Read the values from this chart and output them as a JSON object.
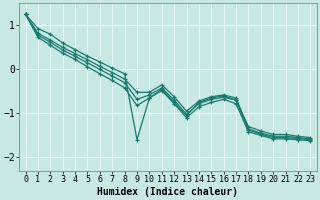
{
  "xlabel": "Humidex (Indice chaleur)",
  "xlim": [
    -0.5,
    23.5
  ],
  "ylim": [
    -2.3,
    1.5
  ],
  "yticks": [
    -2,
    -1,
    0,
    1
  ],
  "xticks": [
    0,
    1,
    2,
    3,
    4,
    5,
    6,
    7,
    8,
    9,
    10,
    11,
    12,
    13,
    14,
    15,
    16,
    17,
    18,
    19,
    20,
    21,
    22,
    23
  ],
  "background_color": "#c8e8e4",
  "grid_color": "#e8f8f8",
  "line_color": "#1a7a6e",
  "lines": [
    [
      1.25,
      0.93,
      0.8,
      0.6,
      0.45,
      0.3,
      0.17,
      0.03,
      -0.1,
      -1.6,
      -0.65,
      -0.45,
      -0.75,
      -1.05,
      -0.75,
      -0.65,
      -0.6,
      -0.7,
      -1.3,
      -1.4,
      -1.48,
      -1.48,
      -1.52,
      -1.55
    ],
    [
      1.25,
      0.82,
      0.67,
      0.5,
      0.36,
      0.22,
      0.07,
      -0.07,
      -0.22,
      -0.52,
      -0.52,
      -0.35,
      -0.62,
      -0.95,
      -0.72,
      -0.62,
      -0.58,
      -0.65,
      -1.35,
      -1.45,
      -1.52,
      -1.52,
      -1.55,
      -1.58
    ],
    [
      1.25,
      0.78,
      0.62,
      0.44,
      0.3,
      0.15,
      0.0,
      -0.15,
      -0.3,
      -0.68,
      -0.58,
      -0.42,
      -0.7,
      -1.02,
      -0.78,
      -0.68,
      -0.63,
      -0.7,
      -1.38,
      -1.47,
      -1.55,
      -1.55,
      -1.57,
      -1.6
    ],
    [
      1.25,
      0.73,
      0.55,
      0.37,
      0.23,
      0.06,
      -0.1,
      -0.25,
      -0.42,
      -0.82,
      -0.65,
      -0.48,
      -0.78,
      -1.1,
      -0.85,
      -0.75,
      -0.68,
      -0.78,
      -1.42,
      -1.5,
      -1.58,
      -1.58,
      -1.6,
      -1.62
    ]
  ]
}
